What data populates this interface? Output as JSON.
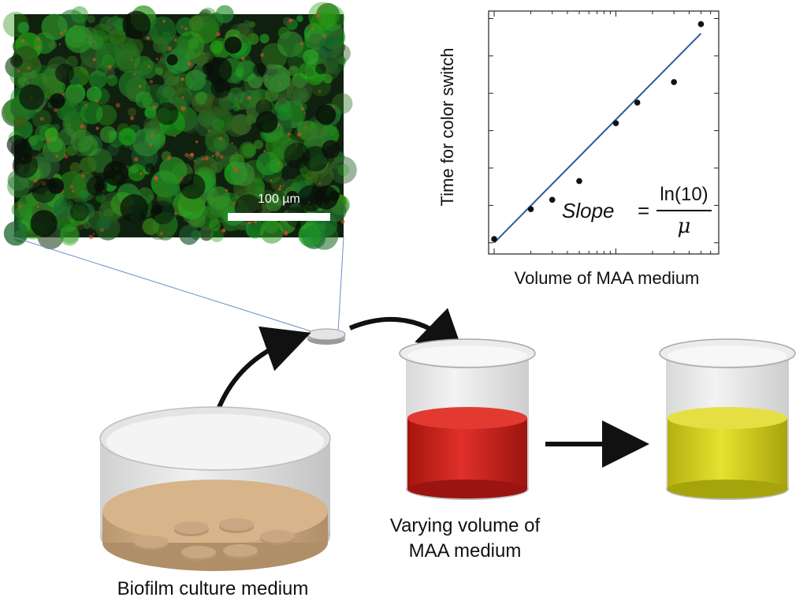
{
  "micrograph": {
    "scale_bar_label": "100 µm"
  },
  "chart_data": {
    "type": "scatter",
    "title": "",
    "xlabel": "Volume of MAA medium",
    "ylabel": "Time for color switch",
    "x_scale": "log",
    "grid": false,
    "points": [
      {
        "x": 1.0,
        "y": 0.1
      },
      {
        "x": 2.0,
        "y": 0.9
      },
      {
        "x": 3.0,
        "y": 1.15
      },
      {
        "x": 5.0,
        "y": 1.65
      },
      {
        "x": 10.0,
        "y": 3.2
      },
      {
        "x": 15.0,
        "y": 3.75
      },
      {
        "x": 30.0,
        "y": 4.3
      },
      {
        "x": 50.0,
        "y": 5.85
      }
    ],
    "fit_line": {
      "x": [
        1.0,
        50.0
      ],
      "y": [
        0.0,
        5.6
      ],
      "color": "#2a5aa0"
    },
    "xlim": [
      0.9,
      70
    ],
    "ylim": [
      -0.3,
      6.2
    ],
    "equation": {
      "lhs": "Slope",
      "equals": "=",
      "numerator": "ln(10)",
      "denominator": "μ"
    }
  },
  "labels": {
    "biofilm_culture": "Biofilm culture medium",
    "varying_volume_line1": "Varying volume of",
    "varying_volume_line2": "MAA medium"
  },
  "colors": {
    "culture_medium": "#d8b48a",
    "red_medium": "#d8241c",
    "yellow_medium": "#d6d41c",
    "fit_line": "#2a5aa0",
    "micrograph_green": "#2f7a2a"
  }
}
